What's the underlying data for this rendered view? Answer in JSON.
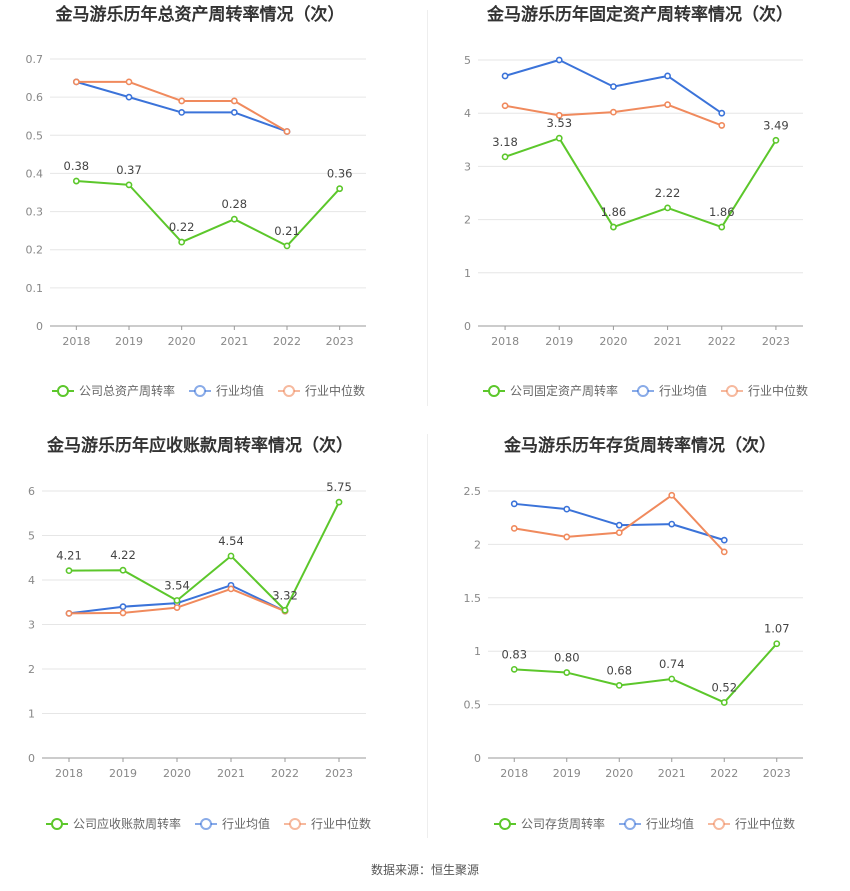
{
  "source": "数据来源：恒生聚源",
  "colors": {
    "company": "#5cc72b",
    "avg": "#3b73d9",
    "median": "#f08a5d",
    "grid": "#e6e6e6",
    "axis": "#999999",
    "tick": "#888888",
    "label": "#444444",
    "title": "#333333"
  },
  "chart_data": [
    {
      "type": "line",
      "title": "金马游乐历年总资产周转率情况（次）",
      "categories": [
        "2018",
        "2019",
        "2020",
        "2021",
        "2022",
        "2023"
      ],
      "yticks": [
        "0",
        "0.1",
        "0.2",
        "0.3",
        "0.4",
        "0.5",
        "0.6",
        "0.7"
      ],
      "ylim": [
        0,
        0.7
      ],
      "series": [
        {
          "name": "公司总资产周转率",
          "role": "company",
          "values": [
            0.38,
            0.37,
            0.22,
            0.28,
            0.21,
            0.36
          ],
          "labels": [
            "0.38",
            "0.37",
            "0.22",
            "0.28",
            "0.21",
            "0.36"
          ]
        },
        {
          "name": "行业均值",
          "role": "avg",
          "values": [
            0.64,
            0.6,
            0.56,
            0.56,
            0.51,
            null
          ]
        },
        {
          "name": "行业中位数",
          "role": "median",
          "values": [
            0.64,
            0.64,
            0.59,
            0.59,
            0.51,
            null
          ]
        }
      ]
    },
    {
      "type": "line",
      "title": "金马游乐历年固定资产周转率情况（次）",
      "categories": [
        "2018",
        "2019",
        "2020",
        "2021",
        "2022",
        "2023"
      ],
      "yticks": [
        "0",
        "1",
        "2",
        "3",
        "4",
        "5"
      ],
      "ylim": [
        0,
        5
      ],
      "series": [
        {
          "name": "公司固定资产周转率",
          "role": "company",
          "values": [
            3.18,
            3.53,
            1.86,
            2.22,
            1.86,
            3.49
          ],
          "labels": [
            "3.18",
            "3.53",
            "1.86",
            "2.22",
            "1.86",
            "3.49"
          ]
        },
        {
          "name": "行业均值",
          "role": "avg",
          "values": [
            4.7,
            5.0,
            4.5,
            4.7,
            4.0,
            null
          ]
        },
        {
          "name": "行业中位数",
          "role": "median",
          "values": [
            4.14,
            3.96,
            4.02,
            4.16,
            3.77,
            null
          ]
        }
      ]
    },
    {
      "type": "line",
      "title": "金马游乐历年应收账款周转率情况（次）",
      "categories": [
        "2018",
        "2019",
        "2020",
        "2021",
        "2022",
        "2023"
      ],
      "yticks": [
        "0",
        "1",
        "2",
        "3",
        "4",
        "5",
        "6"
      ],
      "ylim": [
        0,
        6
      ],
      "series": [
        {
          "name": "公司应收账款周转率",
          "role": "company",
          "values": [
            4.21,
            4.22,
            3.54,
            4.54,
            3.32,
            5.75
          ],
          "labels": [
            "4.21",
            "4.22",
            "3.54",
            "4.54",
            "3.32",
            "5.75"
          ]
        },
        {
          "name": "行业均值",
          "role": "avg",
          "values": [
            3.25,
            3.4,
            3.48,
            3.88,
            3.3,
            null
          ]
        },
        {
          "name": "行业中位数",
          "role": "median",
          "values": [
            3.25,
            3.26,
            3.38,
            3.8,
            3.3,
            null
          ]
        }
      ]
    },
    {
      "type": "line",
      "title": "金马游乐历年存货周转率情况（次）",
      "categories": [
        "2018",
        "2019",
        "2020",
        "2021",
        "2022",
        "2023"
      ],
      "yticks": [
        "0",
        "0.5",
        "1",
        "1.5",
        "2",
        "2.5"
      ],
      "ylim": [
        0,
        2.5
      ],
      "series": [
        {
          "name": "公司存货周转率",
          "role": "company",
          "values": [
            0.83,
            0.8,
            0.68,
            0.74,
            0.52,
            1.07
          ],
          "labels": [
            "0.83",
            "0.80",
            "0.68",
            "0.74",
            "0.52",
            "1.07"
          ]
        },
        {
          "name": "行业均值",
          "role": "avg",
          "values": [
            2.38,
            2.33,
            2.18,
            2.19,
            2.04,
            null
          ]
        },
        {
          "name": "行业中位数",
          "role": "median",
          "values": [
            2.15,
            2.07,
            2.11,
            2.46,
            1.93,
            null
          ]
        }
      ]
    }
  ]
}
